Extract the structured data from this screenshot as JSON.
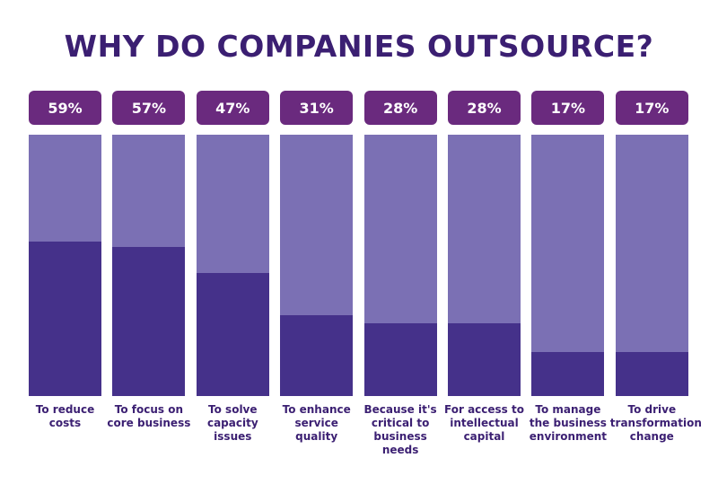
{
  "chart_data": {
    "type": "bar",
    "title": "WHY DO COMPANIES OUTSOURCE?",
    "categories": [
      "To reduce costs",
      "To focus on core business",
      "To solve capacity issues",
      "To enhance service quality",
      "Because it's critical to business needs",
      "For access to intellectual capital",
      "To manage the business environment",
      "To drive transformation change"
    ],
    "values": [
      59,
      57,
      47,
      31,
      28,
      28,
      17,
      17
    ],
    "value_labels": [
      "59%",
      "57%",
      "47%",
      "31%",
      "28%",
      "28%",
      "17%",
      "17%"
    ],
    "color": "#45318a",
    "background_color": "#7b70b4",
    "label_box_color": "#6a2a7e",
    "ylim": [
      0,
      100
    ]
  }
}
